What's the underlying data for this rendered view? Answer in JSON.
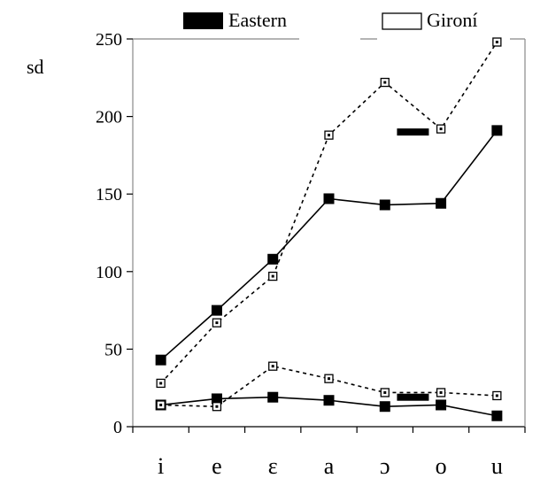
{
  "chart_data": {
    "type": "line",
    "title": "",
    "xlabel": "",
    "ylabel": "sd",
    "ylim": [
      0,
      250
    ],
    "yticks": [
      0,
      50,
      100,
      150,
      200,
      250
    ],
    "categories": [
      "i",
      "e",
      "ɛ",
      "a",
      "ɔ",
      "o",
      "u"
    ],
    "grid": false,
    "legend": {
      "placement": "top",
      "entries": [
        {
          "label": "Eastern",
          "marker": "filled-square",
          "line": "solid"
        },
        {
          "label": "Gironí",
          "marker": "open-square",
          "line": "dashed"
        }
      ]
    },
    "series": [
      {
        "name": "Eastern",
        "group": "upper",
        "marker": "filled-square",
        "line": "solid",
        "values": [
          43,
          75,
          108,
          147,
          143,
          144,
          191
        ]
      },
      {
        "name": "Gironí",
        "group": "upper",
        "marker": "open-square",
        "line": "dashed",
        "values": [
          28,
          67,
          97,
          188,
          222,
          192,
          248
        ]
      },
      {
        "name": "Eastern",
        "group": "lower",
        "marker": "filled-square",
        "line": "solid",
        "values": [
          14,
          18,
          19,
          17,
          13,
          14,
          7
        ]
      },
      {
        "name": "Gironí",
        "group": "lower",
        "marker": "open-square",
        "line": "dashed",
        "values": [
          14,
          13,
          39,
          31,
          22,
          22,
          20
        ]
      }
    ],
    "annotations": [
      {
        "shape": "thick-dash",
        "x_between": [
          "ɔ",
          "o"
        ],
        "y": 190
      },
      {
        "shape": "thick-dash",
        "x_between": [
          "ɔ",
          "o"
        ],
        "y": 19
      }
    ],
    "colors": {
      "line": "#000000",
      "fill": "#000000",
      "background": "#ffffff"
    }
  }
}
